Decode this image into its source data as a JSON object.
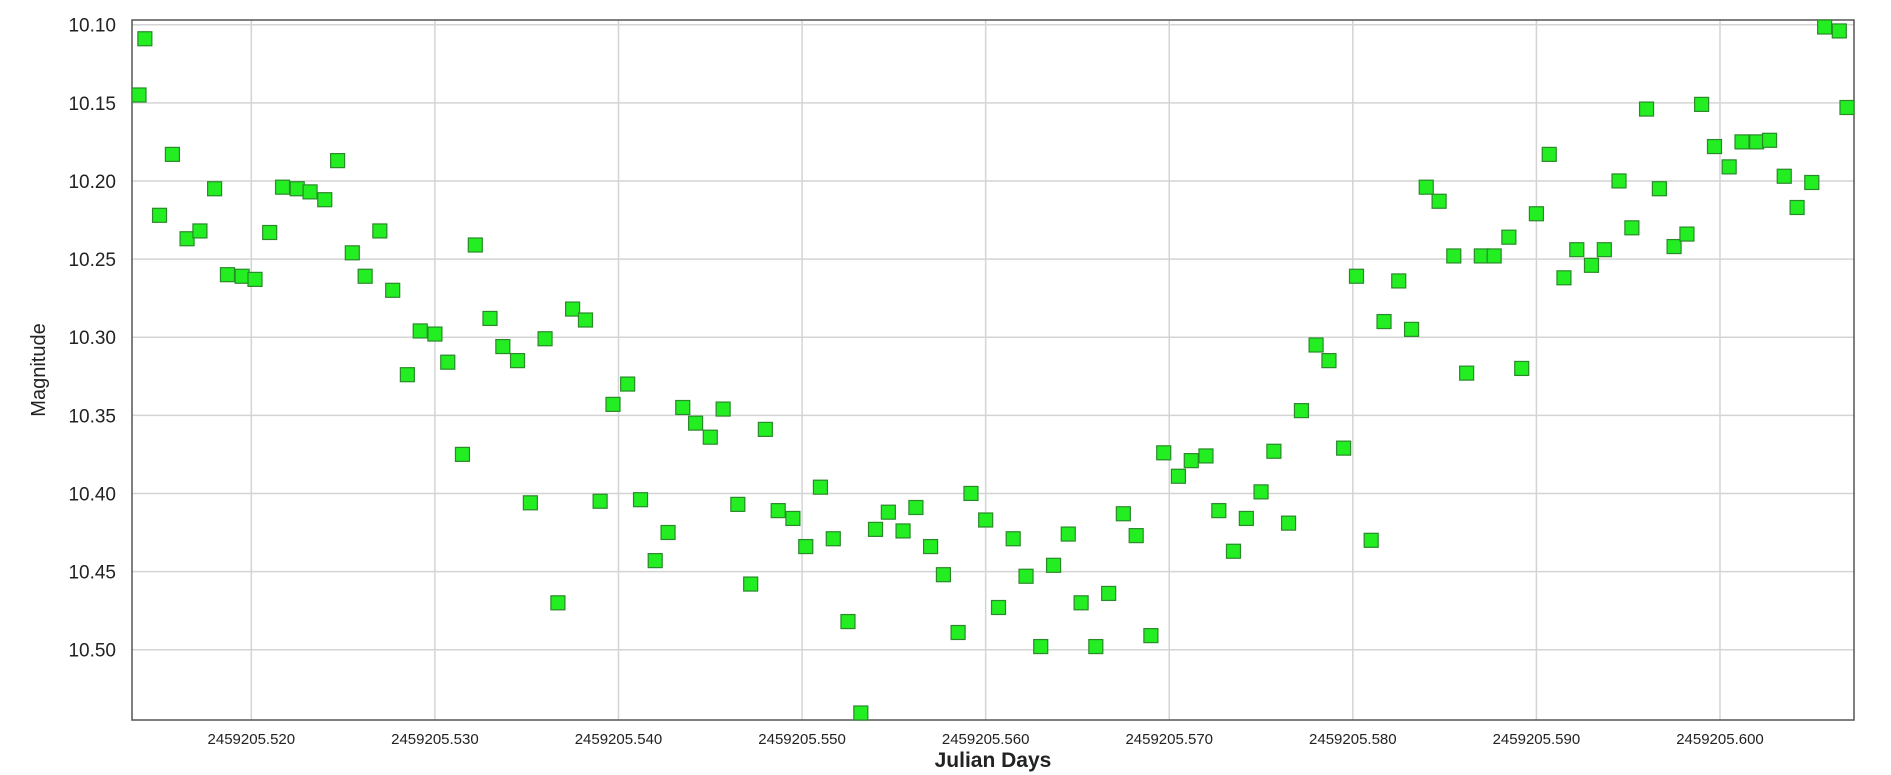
{
  "chart_data": {
    "type": "scatter",
    "xlabel": "Julian Days",
    "ylabel": "Magnitude",
    "xlim": [
      2459205.5135,
      2459205.6073
    ],
    "ylim": [
      10.545,
      10.097
    ],
    "y_inverted": true,
    "grid": true,
    "x_ticks": [
      "2459205.520",
      "2459205.530",
      "2459205.540",
      "2459205.550",
      "2459205.560",
      "2459205.570",
      "2459205.580",
      "2459205.590",
      "2459205.600"
    ],
    "y_ticks": [
      "10.10",
      "10.15",
      "10.20",
      "10.25",
      "10.30",
      "10.35",
      "10.40",
      "10.45",
      "10.50"
    ],
    "marker": {
      "shape": "square",
      "fill": "#22ee22",
      "stroke": "#2a8a2a"
    },
    "colors": {
      "grid": "#d4d4d4",
      "frame": "#555555",
      "text": "#222222"
    },
    "x": [
      2459205.5135,
      2459205.5142,
      2459205.515,
      2459205.5157,
      2459205.5165,
      2459205.5172,
      2459205.518,
      2459205.5187,
      2459205.5195,
      2459205.5202,
      2459205.521,
      2459205.5217,
      2459205.5225,
      2459205.5232,
      2459205.524,
      2459205.5247,
      2459205.5255,
      2459205.5262,
      2459205.527,
      2459205.5277,
      2459205.5285,
      2459205.5292,
      2459205.53,
      2459205.5307,
      2459205.5315,
      2459205.5322,
      2459205.533,
      2459205.5337,
      2459205.5345,
      2459205.5352,
      2459205.536,
      2459205.5367,
      2459205.5375,
      2459205.5382,
      2459205.539,
      2459205.5397,
      2459205.5405,
      2459205.5412,
      2459205.542,
      2459205.5427,
      2459205.5435,
      2459205.5442,
      2459205.545,
      2459205.5457,
      2459205.5465,
      2459205.5472,
      2459205.548,
      2459205.5487,
      2459205.5495,
      2459205.5502,
      2459205.551,
      2459205.5517,
      2459205.5525,
      2459205.5532,
      2459205.554,
      2459205.5547,
      2459205.5555,
      2459205.5562,
      2459205.557,
      2459205.5577,
      2459205.5585,
      2459205.5592,
      2459205.56,
      2459205.5607,
      2459205.5615,
      2459205.5622,
      2459205.563,
      2459205.5637,
      2459205.5645,
      2459205.5652,
      2459205.566,
      2459205.5667,
      2459205.5675,
      2459205.5682,
      2459205.569,
      2459205.5697,
      2459205.5705,
      2459205.5712,
      2459205.572,
      2459205.5727,
      2459205.5735,
      2459205.5742,
      2459205.575,
      2459205.5757,
      2459205.5765,
      2459205.5772,
      2459205.578,
      2459205.5787,
      2459205.5795,
      2459205.5802,
      2459205.581,
      2459205.5817,
      2459205.5825,
      2459205.5832,
      2459205.584,
      2459205.5847,
      2459205.5855,
      2459205.5862,
      2459205.587,
      2459205.5877,
      2459205.5885,
      2459205.5892,
      2459205.59,
      2459205.5907,
      2459205.5915,
      2459205.5922,
      2459205.593,
      2459205.5937,
      2459205.5945,
      2459205.5952,
      2459205.596,
      2459205.5967,
      2459205.5975,
      2459205.5982,
      2459205.599,
      2459205.5997,
      2459205.6005,
      2459205.6012,
      2459205.602,
      2459205.6027,
      2459205.6035,
      2459205.6042,
      2459205.605,
      2459205.6057,
      2459205.6065,
      2459205.6072
    ],
    "y": [
      10.145,
      10.109,
      10.222,
      10.183,
      10.237,
      10.232,
      10.205,
      10.26,
      10.261,
      10.263,
      10.233,
      10.204,
      10.205,
      10.207,
      10.212,
      10.187,
      10.246,
      10.261,
      10.232,
      10.27,
      10.324,
      10.296,
      10.298,
      10.316,
      10.375,
      10.241,
      10.288,
      10.306,
      10.315,
      10.406,
      10.301,
      10.47,
      10.282,
      10.289,
      10.405,
      10.343,
      10.33,
      10.404,
      10.443,
      10.425,
      10.345,
      10.355,
      10.364,
      10.346,
      10.407,
      10.458,
      10.359,
      10.411,
      10.416,
      10.434,
      10.396,
      10.429,
      10.482,
      10.543,
      10.423,
      10.412,
      10.424,
      10.409,
      10.434,
      10.452,
      10.489,
      10.4,
      10.417,
      10.473,
      10.429,
      10.453,
      10.498,
      10.446,
      10.426,
      10.47,
      10.498,
      10.464,
      10.413,
      10.427,
      10.491,
      10.374,
      10.389,
      10.379,
      10.376,
      10.411,
      10.437,
      10.416,
      10.399,
      10.373,
      10.419,
      10.347,
      10.305,
      10.315,
      10.371,
      10.261,
      10.43,
      10.29,
      10.264,
      10.295,
      10.204,
      10.213,
      10.248,
      10.323,
      10.248,
      10.248,
      10.236,
      10.32,
      10.221,
      10.183,
      10.262,
      10.244,
      10.254,
      10.244,
      10.2,
      10.23,
      10.154,
      10.205,
      10.242,
      10.234,
      10.151,
      10.178,
      10.191,
      10.175,
      10.175,
      10.174,
      10.197,
      10.217,
      10.201,
      10.098,
      10.104,
      10.153
    ]
  }
}
